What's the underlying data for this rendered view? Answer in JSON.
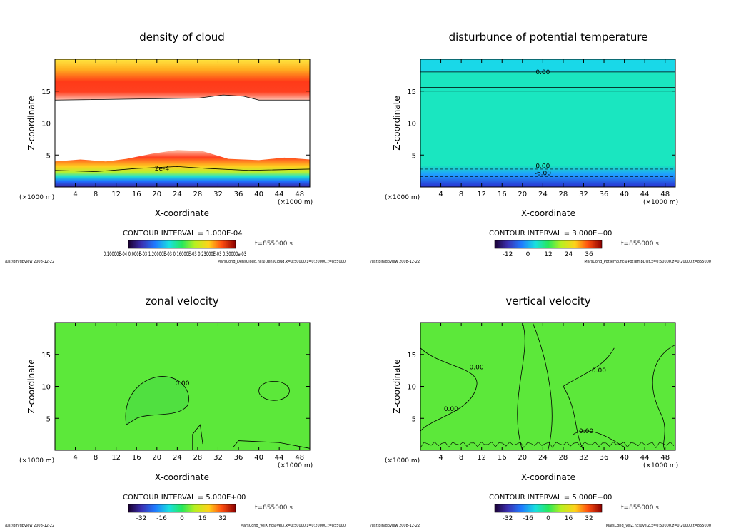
{
  "footer_left": "/usr/bin/gpview   2008-12-22",
  "chart_data": [
    {
      "type": "heatmap",
      "title": "density of cloud",
      "xlabel": "X-coordinate",
      "ylabel": "Z-coordinate",
      "x_unit": "(×1000 m)",
      "y_unit": "(×1000 m)",
      "xlim": [
        0,
        50
      ],
      "ylim": [
        0,
        20
      ],
      "xticks": [
        "4",
        "8",
        "12",
        "16",
        "20",
        "24",
        "28",
        "32",
        "36",
        "40",
        "44",
        "48"
      ],
      "yticks": [
        "5",
        "10",
        "15"
      ],
      "contour_interval": "CONTOUR INTERVAL = 1.000E-04",
      "time": "t=855000  s",
      "colorbar_ticks": "0.10000E-04  0.000E-03  1.20000E-03  0.16000E-03  0.23000E-03  0.30000e-03",
      "contour_labels": [
        {
          "text": "2e-4",
          "x": 21,
          "y": 2.9
        }
      ],
      "footer": "MarsCond_DensCloud.nc@DensCloud,x=0:50000,z=0:20000,t=855000"
    },
    {
      "type": "heatmap",
      "title": "disturbunce of potential temperature",
      "xlabel": "X-coordinate",
      "ylabel": "Z-coordinate",
      "x_unit": "(×1000 m)",
      "y_unit": "(×1000 m)",
      "xlim": [
        0,
        50
      ],
      "ylim": [
        0,
        20
      ],
      "xticks": [
        "4",
        "8",
        "12",
        "16",
        "20",
        "24",
        "28",
        "32",
        "36",
        "40",
        "44",
        "48"
      ],
      "yticks": [
        "5",
        "10",
        "15"
      ],
      "contour_interval": "CONTOUR INTERVAL = 3.000E+00",
      "time": "t=855000  s",
      "colorbar_ticks": [
        "-12",
        "0",
        "12",
        "24",
        "36"
      ],
      "contour_labels": [
        {
          "text": "0.00",
          "x": 24,
          "y": 18
        },
        {
          "text": "0.00",
          "x": 24,
          "y": 3.3
        },
        {
          "text": "-6.00",
          "x": 24,
          "y": 2.2
        }
      ],
      "footer": "MarsCond_PotTemp.nc@PotTempDist,x=0:50000,z=0:20000,t=855000"
    },
    {
      "type": "heatmap",
      "title": "zonal velocity",
      "xlabel": "X-coordinate",
      "ylabel": "Z-coordinate",
      "x_unit": "(×1000 m)",
      "y_unit": "(×1000 m)",
      "xlim": [
        0,
        50
      ],
      "ylim": [
        0,
        20
      ],
      "xticks": [
        "4",
        "8",
        "12",
        "16",
        "20",
        "24",
        "28",
        "32",
        "36",
        "40",
        "44",
        "48"
      ],
      "yticks": [
        "5",
        "10",
        "15"
      ],
      "contour_interval": "CONTOUR INTERVAL = 5.000E+00",
      "time": "t=855000  s",
      "colorbar_ticks": [
        "-32",
        "-16",
        "0",
        "16",
        "32"
      ],
      "contour_labels": [
        {
          "text": "0.00",
          "x": 25,
          "y": 10.5
        }
      ],
      "footer": "MarsCond_VelX.nc@VelX,x=0:50000,z=0:20000,t=855000"
    },
    {
      "type": "heatmap",
      "title": "vertical velocity",
      "xlabel": "X-coordinate",
      "ylabel": "Z-coordinate",
      "x_unit": "(×1000 m)",
      "y_unit": "(×1000 m)",
      "xlim": [
        0,
        50
      ],
      "ylim": [
        0,
        20
      ],
      "xticks": [
        "4",
        "8",
        "12",
        "16",
        "20",
        "24",
        "28",
        "32",
        "36",
        "40",
        "44",
        "48"
      ],
      "yticks": [
        "5",
        "10",
        "15"
      ],
      "contour_interval": "CONTOUR INTERVAL = 5.000E+00",
      "time": "t=855000  s",
      "colorbar_ticks": [
        "-32",
        "-16",
        "0",
        "16",
        "32"
      ],
      "contour_labels": [
        {
          "text": "0.00",
          "x": 11,
          "y": 13
        },
        {
          "text": "0.00",
          "x": 6,
          "y": 6.5
        },
        {
          "text": "0.00",
          "x": 35,
          "y": 12.5
        },
        {
          "text": "0.00",
          "x": 32.5,
          "y": 3
        }
      ],
      "footer": "MarsCond_VelZ.nc@VelZ,x=0:50000,z=0:20000,t=855000"
    }
  ]
}
